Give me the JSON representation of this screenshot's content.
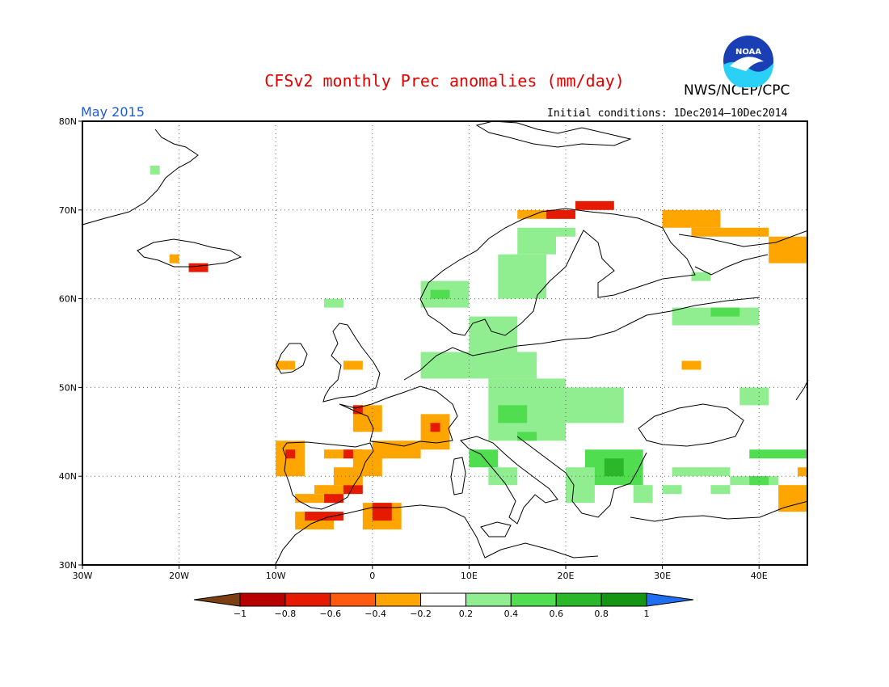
{
  "header": {
    "title": "CFSv2 monthly Prec anomalies (mm/day)",
    "agency": "NWS/NCEP/CPC",
    "month": "May 2015",
    "initial_conditions": "Initial conditions: 1Dec2014–10Dec2014",
    "logo_text": "NOAA"
  },
  "axes": {
    "lat_labels": [
      "30N",
      "40N",
      "50N",
      "60N",
      "70N",
      "80N"
    ],
    "lat_values": [
      30,
      40,
      50,
      60,
      70,
      80
    ],
    "lon_labels": [
      "30W",
      "20W",
      "10W",
      "0",
      "10E",
      "20E",
      "30E",
      "40E"
    ],
    "lon_values": [
      -30,
      -20,
      -10,
      0,
      10,
      20,
      30,
      40
    ],
    "lon_range": [
      -30,
      45
    ],
    "lat_range": [
      30,
      80
    ]
  },
  "colorbar": {
    "labels": [
      "−1",
      "−0.8",
      "−0.6",
      "−0.4",
      "−0.2",
      "0.2",
      "0.4",
      "0.6",
      "0.8",
      "1"
    ],
    "colors": [
      "#7b3f13",
      "#b80000",
      "#e61a00",
      "#ff5a10",
      "#ffa500",
      "#ffffff",
      "#90ee90",
      "#50dd50",
      "#2ab82a",
      "#149614",
      "#1f6ff0"
    ]
  },
  "anomaly_cells": [
    {
      "lon": -10,
      "lat": 40,
      "w": 3,
      "h": 4,
      "level": "orange"
    },
    {
      "lon": -9,
      "lat": 42,
      "w": 1,
      "h": 1,
      "level": "red"
    },
    {
      "lon": -8,
      "lat": 37,
      "w": 5,
      "h": 1,
      "level": "orange"
    },
    {
      "lon": -5,
      "lat": 37,
      "w": 2,
      "h": 1,
      "level": "red"
    },
    {
      "lon": -6,
      "lat": 38,
      "w": 4,
      "h": 1,
      "level": "orange"
    },
    {
      "lon": -3,
      "lat": 38,
      "w": 2,
      "h": 1,
      "level": "red"
    },
    {
      "lon": -4,
      "lat": 39,
      "w": 3,
      "h": 2,
      "level": "orange"
    },
    {
      "lon": -5,
      "lat": 42,
      "w": 4,
      "h": 1,
      "level": "orange"
    },
    {
      "lon": -3,
      "lat": 42,
      "w": 2,
      "h": 1,
      "level": "red"
    },
    {
      "lon": -2,
      "lat": 40,
      "w": 3,
      "h": 3,
      "level": "orange"
    },
    {
      "lon": 0,
      "lat": 42,
      "w": 5,
      "h": 2,
      "level": "orange"
    },
    {
      "lon": -2,
      "lat": 45,
      "w": 3,
      "h": 3,
      "level": "orange"
    },
    {
      "lon": -2,
      "lat": 47,
      "w": 1,
      "h": 1,
      "level": "red"
    },
    {
      "lon": 5,
      "lat": 43,
      "w": 3,
      "h": 4,
      "level": "orange"
    },
    {
      "lon": 6,
      "lat": 45,
      "w": 1,
      "h": 1,
      "level": "red"
    },
    {
      "lon": -8,
      "lat": 34,
      "w": 4,
      "h": 2,
      "level": "orange"
    },
    {
      "lon": -7,
      "lat": 35,
      "w": 2,
      "h": 1,
      "level": "red"
    },
    {
      "lon": -5,
      "lat": 35,
      "w": 2,
      "h": 1,
      "level": "red"
    },
    {
      "lon": -1,
      "lat": 34,
      "w": 4,
      "h": 3,
      "level": "orange"
    },
    {
      "lon": 0,
      "lat": 35,
      "w": 2,
      "h": 2,
      "level": "red"
    },
    {
      "lon": -10,
      "lat": 52,
      "w": 2,
      "h": 1,
      "level": "orange"
    },
    {
      "lon": -3,
      "lat": 52,
      "w": 2,
      "h": 1,
      "level": "orange"
    },
    {
      "lon": -21,
      "lat": 64,
      "w": 1,
      "h": 1,
      "level": "orange"
    },
    {
      "lon": -19,
      "lat": 63,
      "w": 2,
      "h": 1,
      "level": "red"
    },
    {
      "lon": 15,
      "lat": 69,
      "w": 6,
      "h": 1,
      "level": "orange"
    },
    {
      "lon": 18,
      "lat": 69,
      "w": 3,
      "h": 1,
      "level": "red"
    },
    {
      "lon": 21,
      "lat": 70,
      "w": 4,
      "h": 1,
      "level": "red"
    },
    {
      "lon": 30,
      "lat": 68,
      "w": 6,
      "h": 2,
      "level": "orange"
    },
    {
      "lon": 33,
      "lat": 67,
      "w": 8,
      "h": 1,
      "level": "orange"
    },
    {
      "lon": 41,
      "lat": 64,
      "w": 4,
      "h": 3,
      "level": "orange"
    },
    {
      "lon": 32,
      "lat": 52,
      "w": 2,
      "h": 1,
      "level": "orange"
    },
    {
      "lon": 42,
      "lat": 36,
      "w": 3,
      "h": 3,
      "level": "orange"
    },
    {
      "lon": 44,
      "lat": 40,
      "w": 1,
      "h": 1,
      "level": "orange"
    },
    {
      "lon": 5,
      "lat": 59,
      "w": 5,
      "h": 3,
      "level": "light"
    },
    {
      "lon": 6,
      "lat": 60,
      "w": 2,
      "h": 1,
      "level": "green"
    },
    {
      "lon": 13,
      "lat": 60,
      "w": 5,
      "h": 5,
      "level": "light"
    },
    {
      "lon": 15,
      "lat": 65,
      "w": 4,
      "h": 3,
      "level": "light"
    },
    {
      "lon": 10,
      "lat": 54,
      "w": 5,
      "h": 4,
      "level": "light"
    },
    {
      "lon": 5,
      "lat": 51,
      "w": 12,
      "h": 3,
      "level": "light"
    },
    {
      "lon": 12,
      "lat": 44,
      "w": 8,
      "h": 7,
      "level": "light"
    },
    {
      "lon": 13,
      "lat": 46,
      "w": 3,
      "h": 2,
      "level": "green"
    },
    {
      "lon": 15,
      "lat": 44,
      "w": 2,
      "h": 1,
      "level": "green"
    },
    {
      "lon": 18,
      "lat": 46,
      "w": 8,
      "h": 4,
      "level": "light"
    },
    {
      "lon": 10,
      "lat": 41,
      "w": 3,
      "h": 2,
      "level": "green"
    },
    {
      "lon": 12,
      "lat": 39,
      "w": 3,
      "h": 2,
      "level": "light"
    },
    {
      "lon": 22,
      "lat": 39,
      "w": 6,
      "h": 4,
      "level": "green"
    },
    {
      "lon": 24,
      "lat": 40,
      "w": 2,
      "h": 2,
      "level": "dark"
    },
    {
      "lon": 20,
      "lat": 37,
      "w": 3,
      "h": 4,
      "level": "light"
    },
    {
      "lon": 27,
      "lat": 37,
      "w": 2,
      "h": 2,
      "level": "light"
    },
    {
      "lon": 31,
      "lat": 57,
      "w": 9,
      "h": 2,
      "level": "light"
    },
    {
      "lon": 35,
      "lat": 58,
      "w": 3,
      "h": 1,
      "level": "green"
    },
    {
      "lon": 38,
      "lat": 48,
      "w": 3,
      "h": 2,
      "level": "light"
    },
    {
      "lon": 39,
      "lat": 42,
      "w": 6,
      "h": 1,
      "level": "green"
    },
    {
      "lon": 31,
      "lat": 40,
      "w": 6,
      "h": 1,
      "level": "light"
    },
    {
      "lon": 37,
      "lat": 39,
      "w": 5,
      "h": 1,
      "level": "light"
    },
    {
      "lon": 39,
      "lat": 39,
      "w": 2,
      "h": 1,
      "level": "green"
    },
    {
      "lon": 30,
      "lat": 38,
      "w": 2,
      "h": 1,
      "level": "light"
    },
    {
      "lon": 35,
      "lat": 38,
      "w": 2,
      "h": 1,
      "level": "light"
    },
    {
      "lon": 33,
      "lat": 62,
      "w": 2,
      "h": 1,
      "level": "light"
    },
    {
      "lon": 19,
      "lat": 67,
      "w": 2,
      "h": 1,
      "level": "light"
    },
    {
      "lon": -5,
      "lat": 59,
      "w": 2,
      "h": 1,
      "level": "light"
    },
    {
      "lon": -23,
      "lat": 74,
      "w": 1,
      "h": 1,
      "level": "light"
    }
  ]
}
